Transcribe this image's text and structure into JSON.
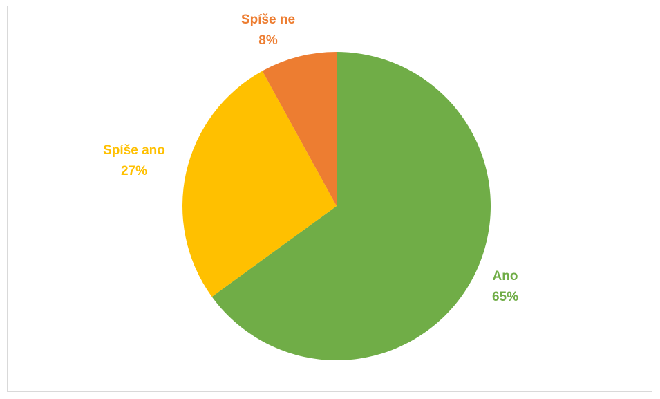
{
  "chart_data": {
    "type": "pie",
    "title": "",
    "categories": [
      "Ano",
      "Spíše ano",
      "Spíše ne"
    ],
    "values": [
      65,
      27,
      8
    ],
    "slices": [
      {
        "label": "Ano",
        "percent_text": "65%",
        "value": 65,
        "color": "#70ad47"
      },
      {
        "label": "Spíše ano",
        "percent_text": "27%",
        "value": 27,
        "color": "#ffc000"
      },
      {
        "label": "Spíše ne",
        "percent_text": "8%",
        "value": 8,
        "color": "#ed7d31"
      }
    ],
    "start_angle": "12 o'clock",
    "direction": "clockwise",
    "legend": "none",
    "data_labels": "outside"
  }
}
